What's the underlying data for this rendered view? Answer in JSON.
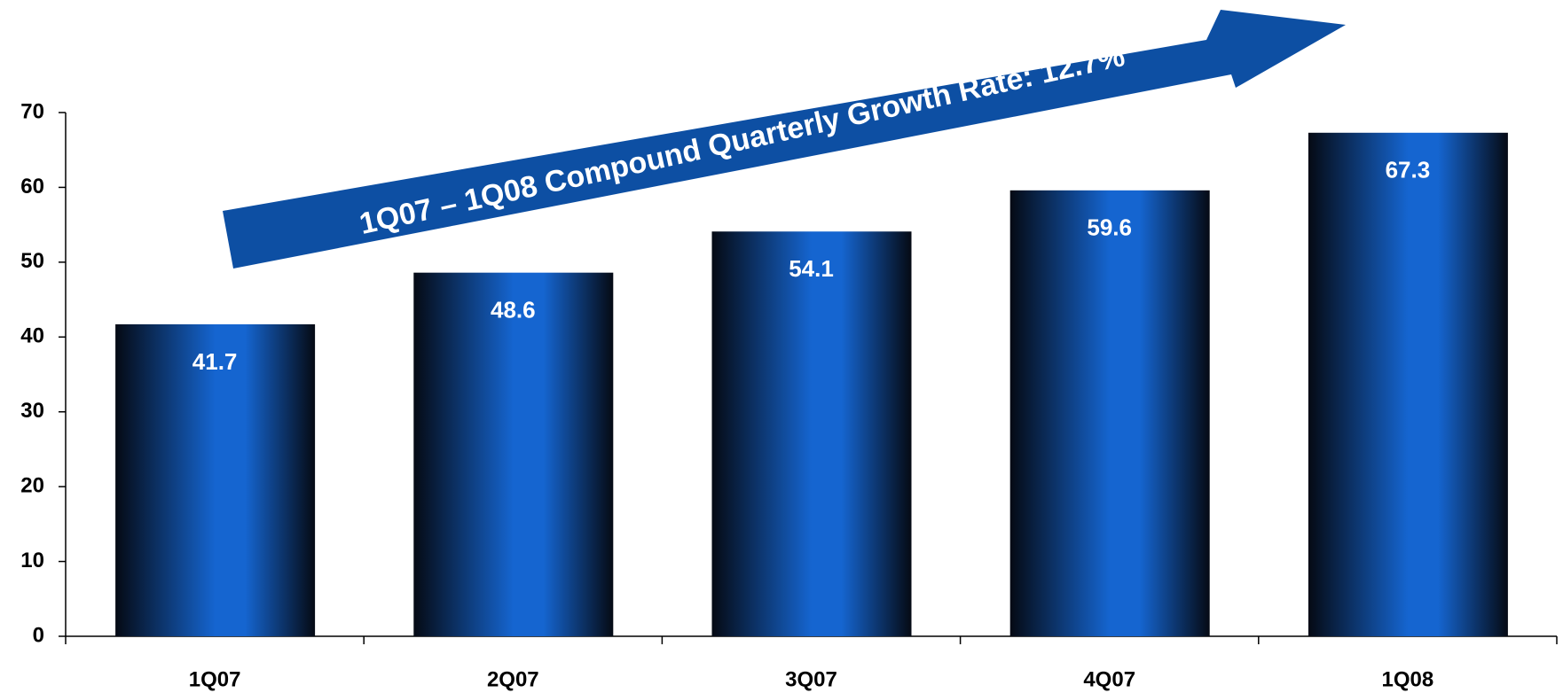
{
  "chart_data": {
    "type": "bar",
    "annotation": "1Q07 – 1Q08 Compound Quarterly Growth Rate: 12.7%",
    "categories": [
      "1Q07",
      "2Q07",
      "3Q07",
      "4Q07",
      "1Q08"
    ],
    "values": [
      41.7,
      48.6,
      54.1,
      59.6,
      67.3
    ],
    "color": "#1565d0",
    "ylim": [
      0,
      70
    ],
    "yticks": [
      0,
      10,
      20,
      30,
      40,
      50,
      60,
      70
    ],
    "grid": false
  }
}
